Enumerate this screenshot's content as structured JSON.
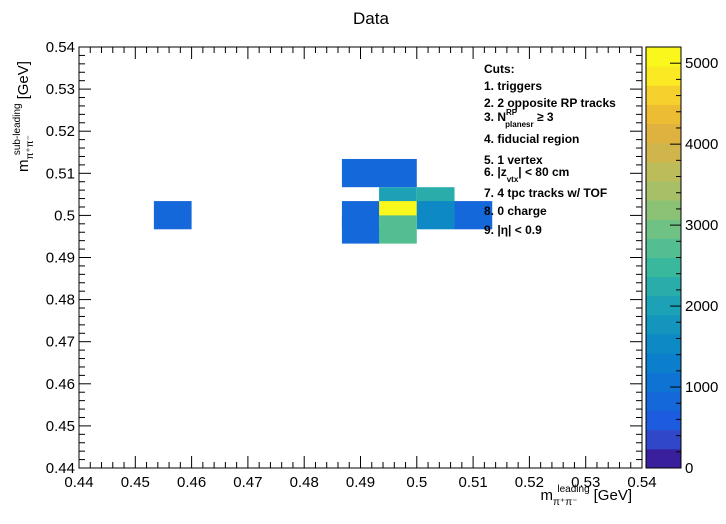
{
  "chart_data": {
    "type": "heatmap",
    "title": "Data",
    "xlabel": {
      "main": "m",
      "sub": "π⁺π⁻",
      "sup": "leading",
      "unit": "[GeV]"
    },
    "ylabel": {
      "main": "m",
      "sub": "π⁺π⁻",
      "sup": "sub-leading",
      "unit": "[GeV]"
    },
    "xlim": [
      0.44,
      0.54
    ],
    "ylim": [
      0.44,
      0.54
    ],
    "x_ticks": [
      "0.44",
      "0.45",
      "0.46",
      "0.47",
      "0.48",
      "0.49",
      "0.5",
      "0.51",
      "0.52",
      "0.53",
      "0.54"
    ],
    "y_ticks": [
      "0.44",
      "0.45",
      "0.46",
      "0.47",
      "0.48",
      "0.49",
      "0.5",
      "0.51",
      "0.52",
      "0.53",
      "0.54"
    ],
    "bin_width": 0.0067,
    "cells": [
      {
        "x": 0.4533,
        "y": 0.4967,
        "z": 800
      },
      {
        "x": 0.4867,
        "y": 0.5067,
        "z": 800
      },
      {
        "x": 0.4933,
        "y": 0.5067,
        "z": 800
      },
      {
        "x": 0.4933,
        "y": 0.5,
        "z": 1900
      },
      {
        "x": 0.5,
        "y": 0.5,
        "z": 2200
      },
      {
        "x": 0.4867,
        "y": 0.4967,
        "z": 800
      },
      {
        "x": 0.4867,
        "y": 0.4933,
        "z": 800
      },
      {
        "x": 0.4933,
        "y": 0.4967,
        "z": 5000
      },
      {
        "x": 0.5,
        "y": 0.4967,
        "z": 1500
      },
      {
        "x": 0.5067,
        "y": 0.4967,
        "z": 800
      },
      {
        "x": 0.4933,
        "y": 0.4933,
        "z": 2700
      }
    ],
    "zlim": [
      0,
      5200
    ],
    "colorbar_ticks": [
      "0",
      "1000",
      "2000",
      "3000",
      "4000",
      "5000"
    ],
    "colorbar_palette": [
      "#3a1f9c",
      "#2f47c8",
      "#1e5cdf",
      "#1568d9",
      "#0e73d2",
      "#0b7fcc",
      "#0d89c5",
      "#1395be",
      "#1ca1b6",
      "#2aadaa",
      "#3ab89e",
      "#53be91",
      "#6fc184",
      "#8cc275",
      "#a7c068",
      "#bdbc5b",
      "#d0b54d",
      "#dfb23f",
      "#ecbc33",
      "#f6d02c",
      "#fbe923",
      "#f9f71b"
    ],
    "legend": {
      "heading": "Cuts:",
      "items": [
        {
          "text": "1. triggers"
        },
        {
          "text": "2. 2 opposite RP tracks"
        },
        {
          "pre": "3. N",
          "sup": "RP",
          "sub": "planesr",
          "post": " ≥ 3"
        },
        {
          "text": "4. fiducial region"
        },
        {
          "text": "5. 1 vertex"
        },
        {
          "pre": "6. |z",
          "sub": "vtx",
          "post": "| < 80 cm"
        },
        {
          "text": "7. 4 tpc tracks w/ TOF"
        },
        {
          "text": "8. 0 charge"
        },
        {
          "pre": "9. |",
          "greek": "η",
          "post": "| < 0.9"
        }
      ]
    }
  }
}
